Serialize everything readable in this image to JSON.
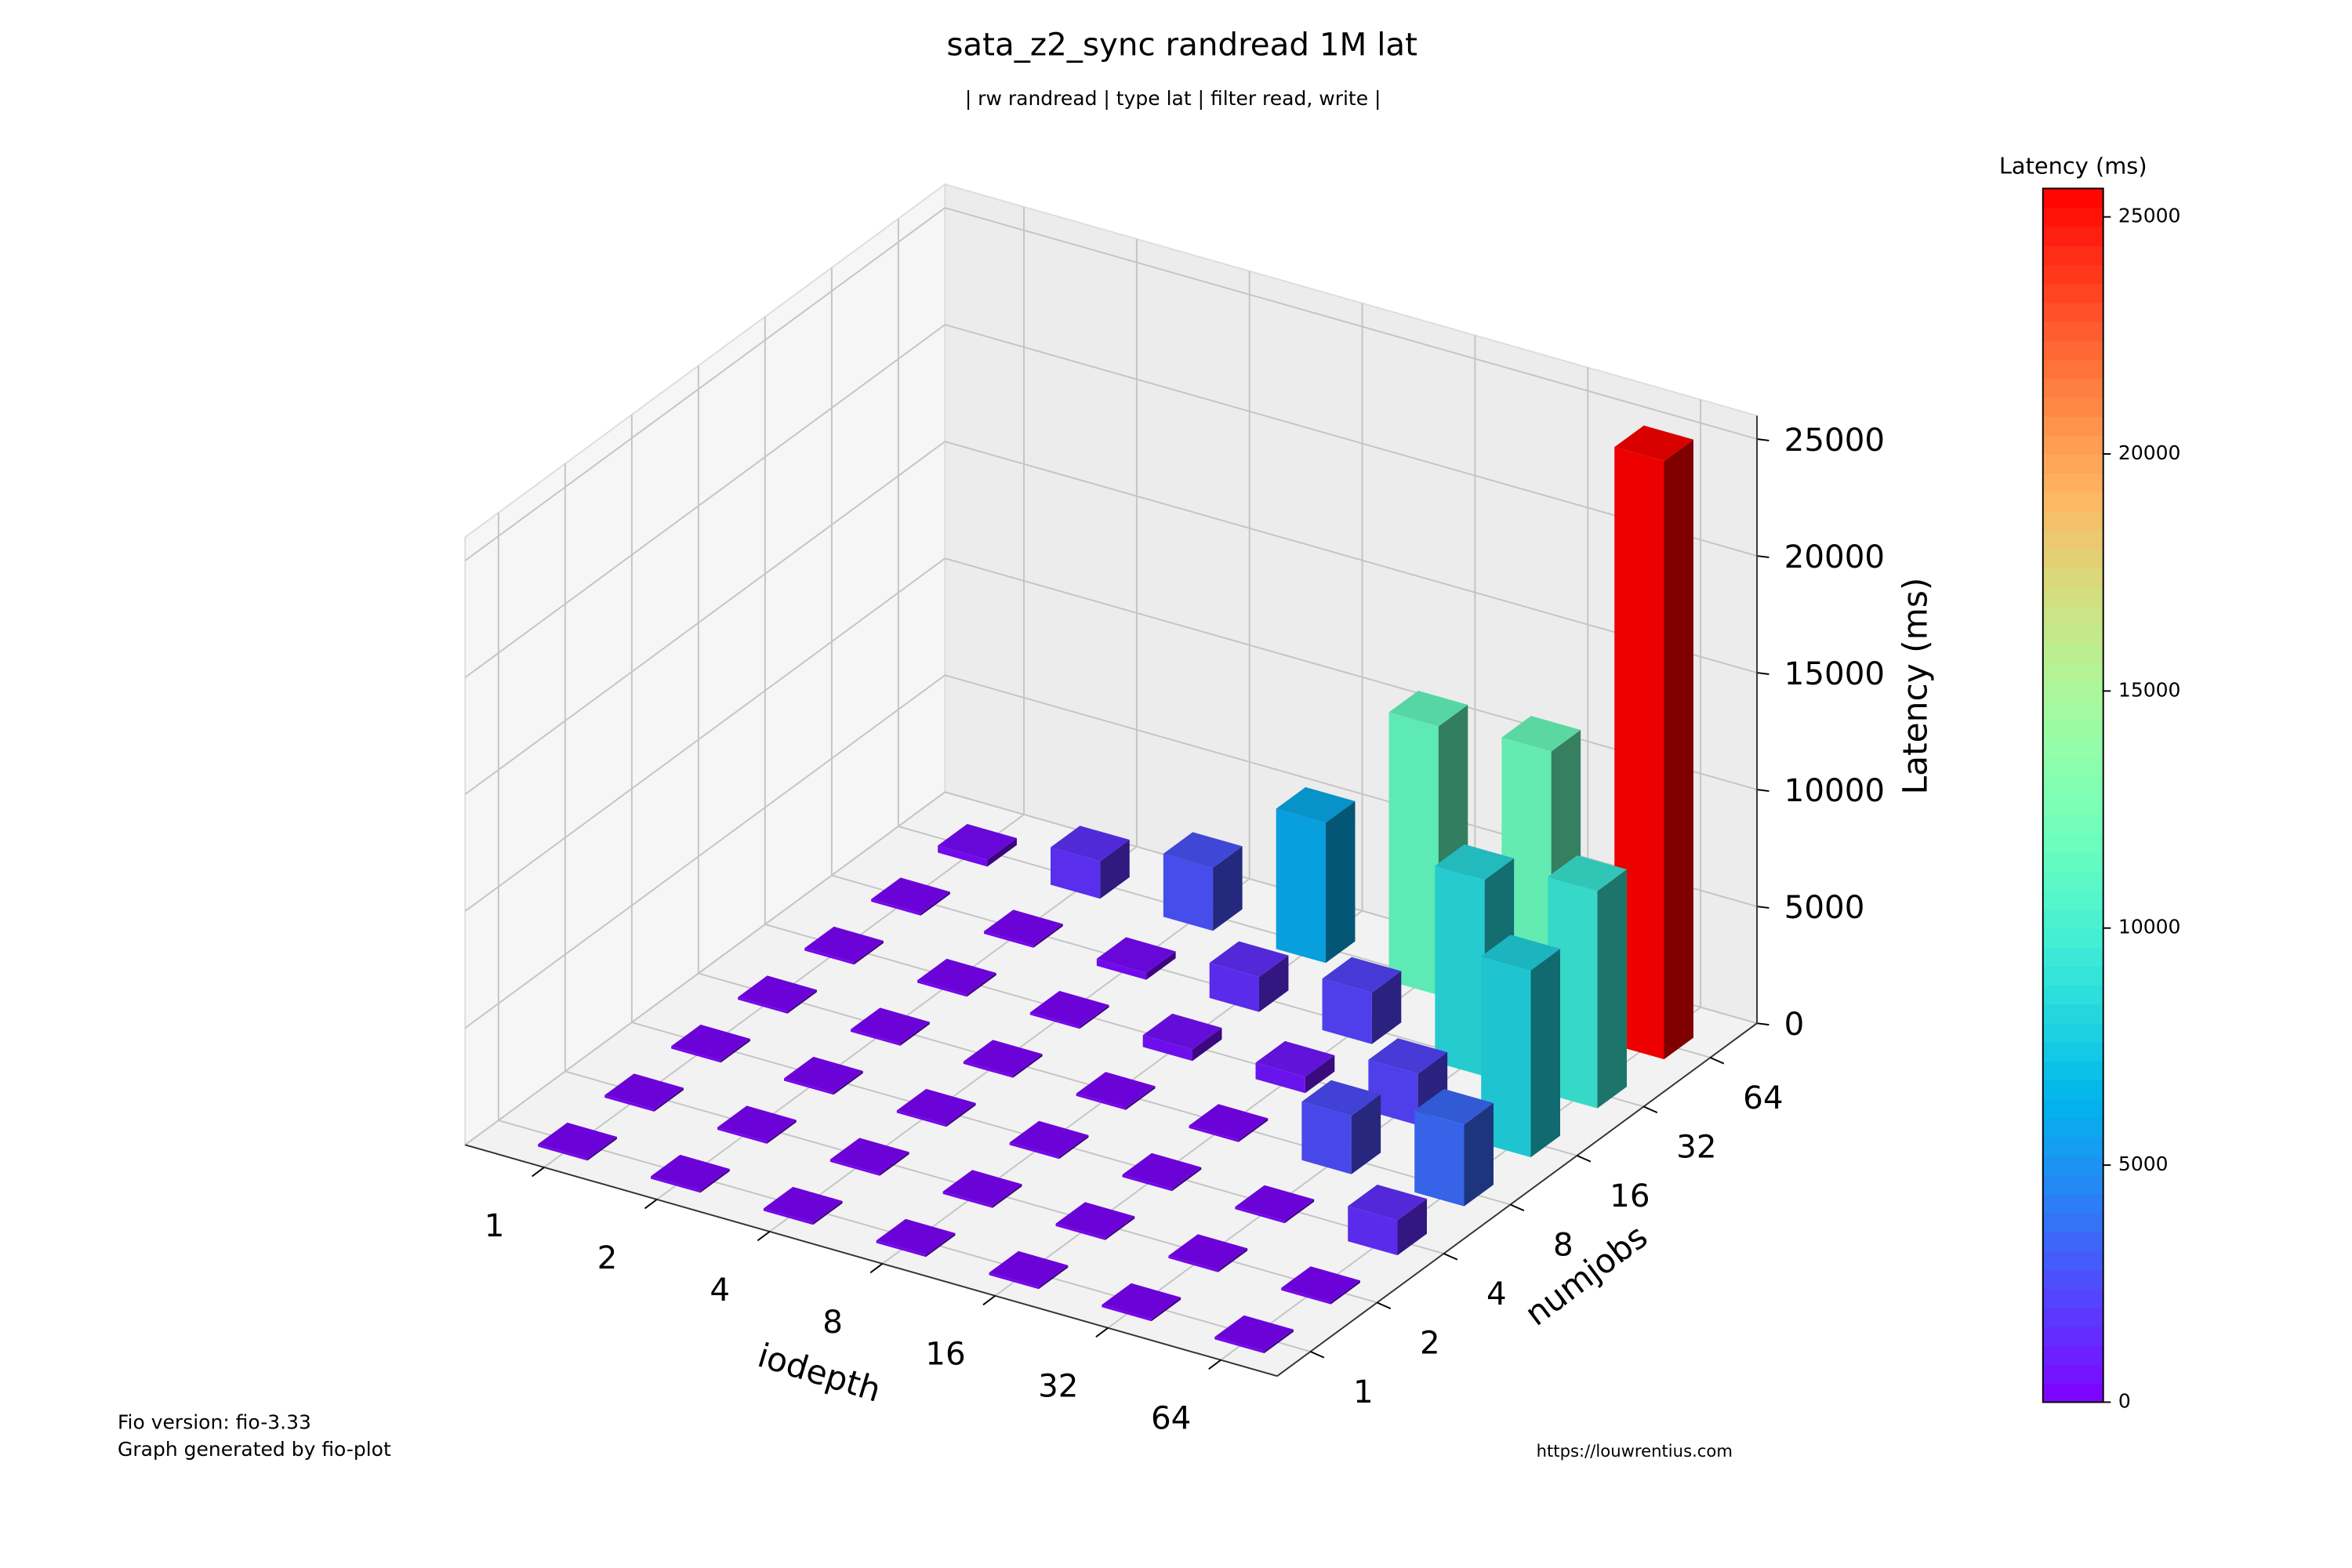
{
  "chart_data": {
    "type": "bar3d",
    "title": "sata_z2_sync randread 1M lat",
    "subtitle": "| rw randread | type lat | filter read, write |",
    "x_label": "iodepth",
    "y_label": "numjobs",
    "z_label": "Latency (ms)",
    "x_categories": [
      "1",
      "2",
      "4",
      "8",
      "16",
      "32",
      "64"
    ],
    "y_categories": [
      "1",
      "2",
      "4",
      "8",
      "16",
      "32",
      "64"
    ],
    "values": [
      [
        100,
        100,
        100,
        100,
        100,
        100,
        100
      ],
      [
        100,
        100,
        100,
        100,
        100,
        100,
        100
      ],
      [
        100,
        100,
        100,
        100,
        100,
        100,
        1500
      ],
      [
        100,
        100,
        100,
        100,
        100,
        2500,
        3500
      ],
      [
        100,
        100,
        100,
        500,
        700,
        2200,
        8000
      ],
      [
        100,
        100,
        300,
        1500,
        2200,
        8400,
        9300
      ],
      [
        300,
        1600,
        2700,
        6000,
        11500,
        11800,
        25600
      ]
    ],
    "zlim": [
      0,
      26000
    ],
    "zticks": [
      0,
      5000,
      10000,
      15000,
      20000,
      25000
    ],
    "colormap": "rainbow",
    "colorbar": {
      "label": "Latency (ms)",
      "lim": [
        0,
        25600
      ],
      "ticks": [
        0,
        5000,
        10000,
        15000,
        20000,
        25000
      ]
    },
    "footer": {
      "left": [
        "Fio version: fio-3.33",
        "Graph generated by fio-plot"
      ],
      "right": "https://louwrentius.com"
    }
  }
}
